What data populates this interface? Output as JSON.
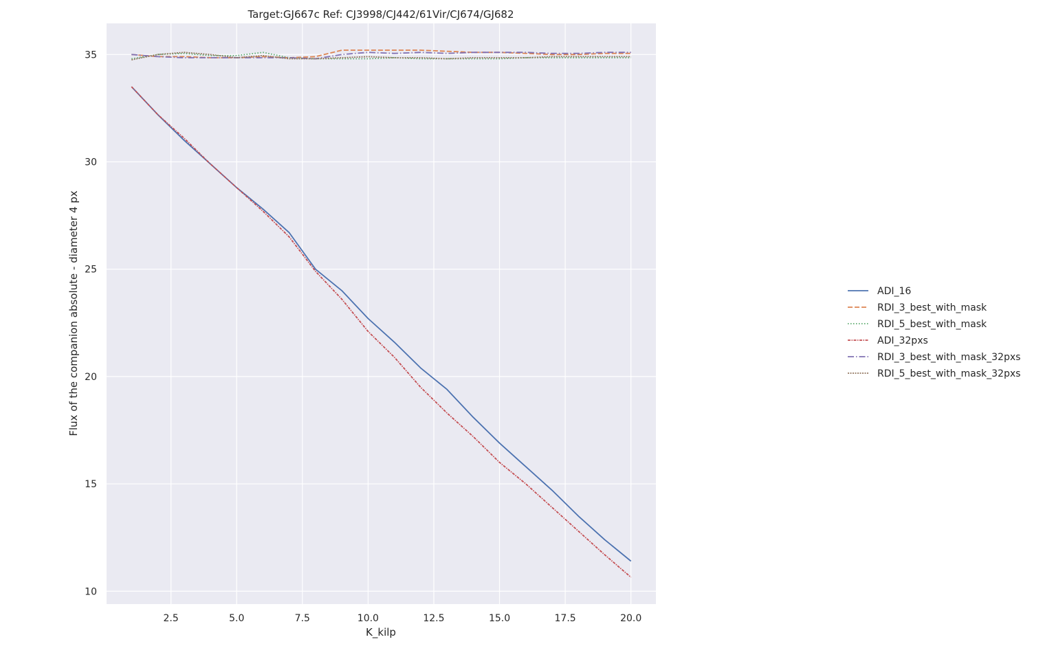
{
  "chart_data": {
    "type": "line",
    "title": "Target:GJ667c Ref: CJ3998/CJ442/61Vir/CJ674/GJ682",
    "xlabel": "K_kilp",
    "ylabel": "Flux of the companion absolute - diameter 4 px",
    "xlim": [
      0.05,
      20.95
    ],
    "ylim": [
      9.4,
      36.45
    ],
    "xticks": [
      2.5,
      5.0,
      7.5,
      10.0,
      12.5,
      15.0,
      17.5,
      20.0
    ],
    "xtick_labels": [
      "2.5",
      "5.0",
      "7.5",
      "10.0",
      "12.5",
      "15.0",
      "17.5",
      "20.0"
    ],
    "yticks": [
      10,
      15,
      20,
      25,
      30,
      35
    ],
    "ytick_labels": [
      "10",
      "15",
      "20",
      "25",
      "30",
      "35"
    ],
    "grid": true,
    "background": "#eaeaf2",
    "legend_position": "outside-right",
    "x": [
      1,
      2,
      3,
      4,
      5,
      6,
      7,
      8,
      9,
      10,
      11,
      12,
      13,
      14,
      15,
      16,
      17,
      18,
      19,
      20
    ],
    "series": [
      {
        "name": "ADI_16",
        "color": "#4c72b0",
        "dash": "solid",
        "values": [
          33.5,
          32.2,
          31.0,
          29.9,
          28.8,
          27.8,
          26.7,
          25.0,
          24.0,
          22.7,
          21.6,
          20.4,
          19.4,
          18.1,
          16.9,
          15.8,
          14.7,
          13.5,
          12.4,
          11.4
        ]
      },
      {
        "name": "RDI_3_best_with_mask",
        "color": "#dd8452",
        "dash": "dashed",
        "values": [
          35.0,
          34.9,
          34.9,
          34.85,
          34.85,
          34.9,
          34.85,
          34.9,
          35.2,
          35.2,
          35.2,
          35.2,
          35.15,
          35.1,
          35.1,
          35.05,
          35.0,
          35.0,
          35.05,
          35.05
        ]
      },
      {
        "name": "RDI_5_best_with_mask",
        "color": "#55a868",
        "dash": "dotted",
        "values": [
          34.8,
          35.0,
          35.05,
          34.95,
          34.95,
          35.1,
          34.85,
          34.8,
          34.8,
          34.8,
          34.85,
          34.8,
          34.8,
          34.8,
          34.8,
          34.85,
          34.85,
          34.85,
          34.85,
          34.85
        ]
      },
      {
        "name": "ADI_32pxs",
        "color": "#c44e52",
        "dash": "dashdot-fine",
        "values": [
          33.5,
          32.2,
          31.1,
          29.9,
          28.8,
          27.7,
          26.5,
          24.9,
          23.6,
          22.1,
          20.9,
          19.5,
          18.3,
          17.2,
          16.0,
          15.0,
          13.9,
          12.8,
          11.7,
          10.65
        ]
      },
      {
        "name": "RDI_3_best_with_mask_32pxs",
        "color": "#8172b3",
        "dash": "dashdot",
        "values": [
          35.0,
          34.9,
          34.85,
          34.85,
          34.85,
          34.85,
          34.85,
          34.8,
          35.0,
          35.1,
          35.05,
          35.1,
          35.05,
          35.1,
          35.1,
          35.1,
          35.05,
          35.05,
          35.1,
          35.1
        ]
      },
      {
        "name": "RDI_5_best_with_mask_32pxs",
        "color": "#937860",
        "dash": "dotted-fine",
        "values": [
          34.75,
          35.0,
          35.1,
          35.0,
          34.85,
          34.95,
          34.8,
          34.8,
          34.85,
          34.9,
          34.85,
          34.85,
          34.8,
          34.85,
          34.85,
          34.85,
          34.9,
          34.9,
          34.9,
          34.9
        ]
      }
    ]
  }
}
